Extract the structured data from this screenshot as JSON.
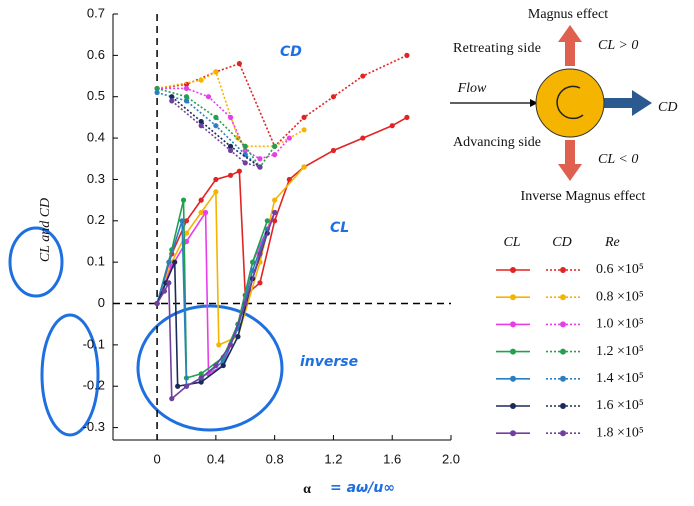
{
  "chart_data": {
    "type": "line",
    "x_label": "α",
    "y_label": "CL and CD",
    "xlim": [
      -0.3,
      2.0
    ],
    "ylim": [
      -0.33,
      0.7
    ],
    "xticks": [
      0,
      0.4,
      0.8,
      1.2,
      1.6,
      {
        "value": 2,
        "label": "2.0"
      }
    ],
    "yticks": [
      0.7,
      0.6,
      0.5,
      0.4,
      0.3,
      0.2,
      0.1,
      0,
      -0.1,
      -0.2,
      -0.3
    ],
    "legend_headers": [
      "CL",
      "CD",
      "Re"
    ],
    "series": [
      {
        "name": "0.6 ×10⁵",
        "color": "#e02424",
        "cl": {
          "x": [
            0,
            0.1,
            0.2,
            0.3,
            0.4,
            0.5,
            0.56,
            0.6,
            0.7,
            0.8,
            0.9,
            1.0,
            1.2,
            1.4,
            1.6,
            1.7
          ],
          "values": [
            0,
            0.12,
            0.2,
            0.25,
            0.3,
            0.31,
            0.32,
            0.02,
            0.05,
            0.2,
            0.3,
            0.33,
            0.37,
            0.4,
            0.43,
            0.45
          ]
        },
        "cd": {
          "x": [
            0,
            0.2,
            0.4,
            0.56,
            0.8,
            1.0,
            1.2,
            1.4,
            1.7
          ],
          "values": [
            0.52,
            0.53,
            0.56,
            0.58,
            0.38,
            0.45,
            0.5,
            0.55,
            0.6
          ]
        }
      },
      {
        "name": "0.8 ×10⁵",
        "color": "#f5b400",
        "cl": {
          "x": [
            0,
            0.1,
            0.2,
            0.3,
            0.4,
            0.42,
            0.55,
            0.7,
            0.8,
            1.0
          ],
          "values": [
            0,
            0.1,
            0.17,
            0.22,
            0.27,
            -0.1,
            -0.08,
            0.1,
            0.25,
            0.33
          ]
        },
        "cd": {
          "x": [
            0,
            0.3,
            0.4,
            0.55,
            0.6,
            0.8,
            1.0
          ],
          "values": [
            0.52,
            0.54,
            0.56,
            0.4,
            0.38,
            0.38,
            0.42
          ]
        }
      },
      {
        "name": "1.0 ×10⁵",
        "color": "#e83ee8",
        "cl": {
          "x": [
            0,
            0.1,
            0.2,
            0.33,
            0.35,
            0.45,
            0.55,
            0.65,
            0.8
          ],
          "values": [
            0,
            0.09,
            0.15,
            0.22,
            -0.17,
            -0.15,
            -0.05,
            0.1,
            0.22
          ]
        },
        "cd": {
          "x": [
            0,
            0.2,
            0.35,
            0.5,
            0.6,
            0.7,
            0.8,
            0.9
          ],
          "values": [
            0.52,
            0.52,
            0.5,
            0.45,
            0.37,
            0.35,
            0.36,
            0.4
          ]
        }
      },
      {
        "name": "1.2 ×10⁵",
        "color": "#22a050",
        "cl": {
          "x": [
            0,
            0.1,
            0.18,
            0.2,
            0.3,
            0.45,
            0.55,
            0.65,
            0.75
          ],
          "values": [
            0,
            0.13,
            0.25,
            -0.18,
            -0.17,
            -0.13,
            -0.05,
            0.1,
            0.2
          ]
        },
        "cd": {
          "x": [
            0,
            0.2,
            0.4,
            0.6,
            0.7,
            0.8
          ],
          "values": [
            0.52,
            0.5,
            0.45,
            0.38,
            0.33,
            0.38
          ]
        }
      },
      {
        "name": "1.4 ×10⁵",
        "color": "#2a7fc0",
        "cl": {
          "x": [
            0,
            0.08,
            0.17,
            0.2,
            0.3,
            0.45,
            0.55,
            0.65,
            0.75
          ],
          "values": [
            0,
            0.1,
            0.2,
            -0.2,
            -0.18,
            -0.14,
            -0.06,
            0.08,
            0.18
          ]
        },
        "cd": {
          "x": [
            0,
            0.2,
            0.4,
            0.6,
            0.7
          ],
          "values": [
            0.51,
            0.49,
            0.43,
            0.36,
            0.33
          ]
        }
      },
      {
        "name": "1.6 ×10⁵",
        "color": "#1a2a5a",
        "cl": {
          "x": [
            0,
            0.06,
            0.12,
            0.14,
            0.3,
            0.45,
            0.55,
            0.65,
            0.75
          ],
          "values": [
            0,
            0.05,
            0.1,
            -0.2,
            -0.19,
            -0.15,
            -0.08,
            0.06,
            0.17
          ]
        },
        "cd": {
          "x": [
            0.1,
            0.3,
            0.5,
            0.7
          ],
          "values": [
            0.5,
            0.44,
            0.38,
            0.33
          ]
        }
      },
      {
        "name": "1.8 ×10⁵",
        "color": "#7040a0",
        "cl": {
          "x": [
            0,
            0.05,
            0.08,
            0.1,
            0.2,
            0.3,
            0.4,
            0.5,
            0.6,
            0.7,
            0.8
          ],
          "values": [
            0,
            0.03,
            0.05,
            -0.23,
            -0.2,
            -0.18,
            -0.15,
            -0.1,
            0,
            0.12,
            0.22
          ]
        },
        "cd": {
          "x": [
            0.1,
            0.3,
            0.5,
            0.6,
            0.7
          ],
          "values": [
            0.49,
            0.43,
            0.37,
            0.34,
            0.33
          ]
        }
      }
    ],
    "diagram": {
      "top": "Magnus effect",
      "retreating": "Retreating side",
      "flow": "Flow",
      "advancing": "Advancing side",
      "cl_pos": "CL > 0",
      "cl_neg": "CL < 0",
      "cd": "CD",
      "bottom": "Inverse Magnus effect"
    },
    "handwriting": [
      "CD",
      "CL",
      "inverse",
      "= aω/u∞"
    ]
  }
}
